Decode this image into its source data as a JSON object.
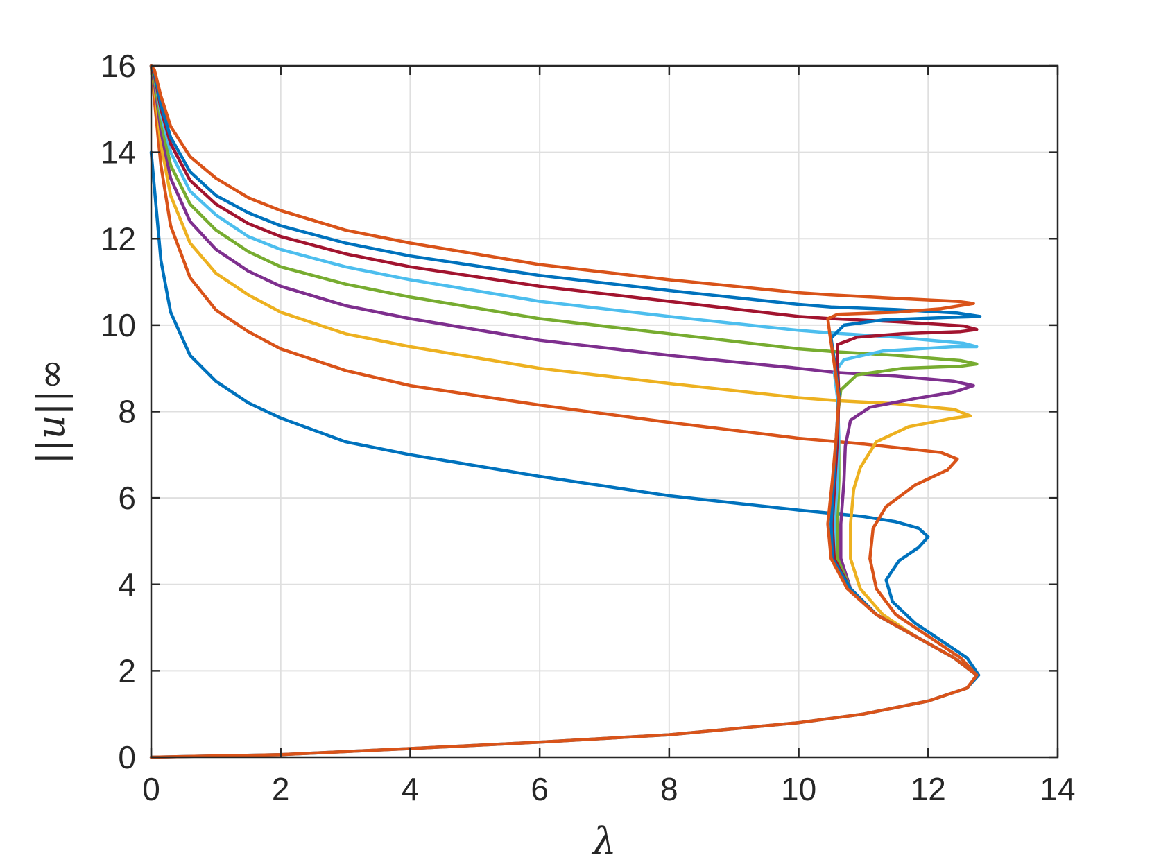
{
  "chart_data": {
    "type": "line",
    "title": "",
    "xlabel": "λ",
    "ylabel": "||u||∞",
    "xlim": [
      0,
      14
    ],
    "ylim": [
      0,
      16
    ],
    "xticks": [
      0,
      2,
      4,
      6,
      8,
      10,
      12,
      14
    ],
    "yticks": [
      0,
      2,
      4,
      6,
      8,
      10,
      12,
      14,
      16
    ],
    "xtick_labels": [
      "0",
      "2",
      "4",
      "6",
      "8",
      "10",
      "12",
      "14"
    ],
    "ytick_labels": [
      "0",
      "2",
      "4",
      "6",
      "8",
      "10",
      "12",
      "14",
      "16"
    ],
    "grid": true,
    "legend": "none",
    "colors": {
      "blue": "#0072BD",
      "orange": "#D95319",
      "yellow": "#EDB120",
      "purple": "#7E2F8E",
      "green": "#77AC30",
      "cyan": "#4DBEEE",
      "darkred": "#A2142F",
      "axis": "#262626",
      "grid": "#dfdfdf"
    },
    "series": [
      {
        "color": "#0072BD",
        "points": [
          [
            0,
            0
          ],
          [
            2,
            0.06
          ],
          [
            4,
            0.2
          ],
          [
            6,
            0.35
          ],
          [
            8,
            0.52
          ],
          [
            10,
            0.8
          ],
          [
            11,
            1.0
          ],
          [
            12,
            1.3
          ],
          [
            12.6,
            1.6
          ],
          [
            12.78,
            1.9
          ],
          [
            12.6,
            2.3
          ],
          [
            12.2,
            2.7
          ],
          [
            11.8,
            3.1
          ],
          [
            11.45,
            3.6
          ],
          [
            11.35,
            4.1
          ],
          [
            11.55,
            4.55
          ],
          [
            11.85,
            4.85
          ],
          [
            12.0,
            5.1
          ],
          [
            11.85,
            5.3
          ],
          [
            11.5,
            5.45
          ],
          [
            11.0,
            5.57
          ],
          [
            10,
            5.72
          ],
          [
            8,
            6.05
          ],
          [
            6,
            6.5
          ],
          [
            4,
            7.0
          ],
          [
            3,
            7.3
          ],
          [
            2,
            7.85
          ],
          [
            1.5,
            8.2
          ],
          [
            1,
            8.7
          ],
          [
            0.6,
            9.3
          ],
          [
            0.3,
            10.3
          ],
          [
            0.15,
            11.5
          ],
          [
            0.06,
            13
          ],
          [
            0,
            14
          ]
        ]
      },
      {
        "color": "#D95319",
        "points": [
          [
            0,
            0
          ],
          [
            2,
            0.06
          ],
          [
            4,
            0.2
          ],
          [
            6,
            0.35
          ],
          [
            8,
            0.52
          ],
          [
            10,
            0.8
          ],
          [
            11,
            1.0
          ],
          [
            12,
            1.3
          ],
          [
            12.6,
            1.6
          ],
          [
            12.75,
            1.9
          ],
          [
            12.5,
            2.3
          ],
          [
            12.0,
            2.8
          ],
          [
            11.5,
            3.3
          ],
          [
            11.2,
            3.9
          ],
          [
            11.1,
            4.6
          ],
          [
            11.15,
            5.3
          ],
          [
            11.35,
            5.8
          ],
          [
            11.8,
            6.3
          ],
          [
            12.3,
            6.65
          ],
          [
            12.45,
            6.9
          ],
          [
            12.2,
            7.05
          ],
          [
            11.0,
            7.25
          ],
          [
            10,
            7.38
          ],
          [
            8,
            7.75
          ],
          [
            6,
            8.15
          ],
          [
            4,
            8.6
          ],
          [
            3,
            8.95
          ],
          [
            2,
            9.45
          ],
          [
            1.5,
            9.85
          ],
          [
            1,
            10.35
          ],
          [
            0.6,
            11.1
          ],
          [
            0.3,
            12.3
          ],
          [
            0.15,
            13.7
          ],
          [
            0.05,
            15.2
          ],
          [
            0,
            16
          ]
        ]
      },
      {
        "color": "#EDB120",
        "points": [
          [
            12.75,
            1.9
          ],
          [
            12.4,
            2.3
          ],
          [
            11.8,
            2.8
          ],
          [
            11.3,
            3.3
          ],
          [
            10.95,
            3.9
          ],
          [
            10.8,
            4.6
          ],
          [
            10.8,
            5.4
          ],
          [
            10.85,
            6.2
          ],
          [
            10.95,
            6.7
          ],
          [
            11.2,
            7.3
          ],
          [
            11.7,
            7.65
          ],
          [
            12.4,
            7.85
          ],
          [
            12.65,
            7.9
          ],
          [
            12.4,
            8.05
          ],
          [
            11.5,
            8.18
          ],
          [
            10.6,
            8.25
          ],
          [
            10,
            8.32
          ],
          [
            8,
            8.65
          ],
          [
            6,
            9.0
          ],
          [
            4,
            9.5
          ],
          [
            3,
            9.8
          ],
          [
            2,
            10.3
          ],
          [
            1.5,
            10.7
          ],
          [
            1,
            11.2
          ],
          [
            0.6,
            11.9
          ],
          [
            0.3,
            13.0
          ],
          [
            0.15,
            14.2
          ],
          [
            0.05,
            15.5
          ],
          [
            0,
            16
          ]
        ]
      },
      {
        "color": "#7E2F8E",
        "points": [
          [
            12.75,
            1.9
          ],
          [
            12.4,
            2.3
          ],
          [
            11.8,
            2.8
          ],
          [
            11.2,
            3.3
          ],
          [
            10.8,
            3.9
          ],
          [
            10.65,
            4.6
          ],
          [
            10.65,
            5.4
          ],
          [
            10.7,
            6.4
          ],
          [
            10.72,
            7.2
          ],
          [
            10.8,
            7.8
          ],
          [
            11.1,
            8.1
          ],
          [
            11.8,
            8.3
          ],
          [
            12.4,
            8.45
          ],
          [
            12.7,
            8.6
          ],
          [
            12.4,
            8.7
          ],
          [
            11.5,
            8.82
          ],
          [
            10.6,
            8.9
          ],
          [
            10,
            9.0
          ],
          [
            8,
            9.3
          ],
          [
            6,
            9.65
          ],
          [
            4,
            10.15
          ],
          [
            3,
            10.45
          ],
          [
            2,
            10.9
          ],
          [
            1.5,
            11.25
          ],
          [
            1,
            11.75
          ],
          [
            0.6,
            12.4
          ],
          [
            0.3,
            13.4
          ],
          [
            0.15,
            14.5
          ],
          [
            0.05,
            15.6
          ],
          [
            0,
            16
          ]
        ]
      },
      {
        "color": "#77AC30",
        "points": [
          [
            12.75,
            1.9
          ],
          [
            12.4,
            2.3
          ],
          [
            11.8,
            2.8
          ],
          [
            11.2,
            3.3
          ],
          [
            10.8,
            3.9
          ],
          [
            10.6,
            4.6
          ],
          [
            10.6,
            5.4
          ],
          [
            10.62,
            6.4
          ],
          [
            10.62,
            7.3
          ],
          [
            10.6,
            7.9
          ],
          [
            10.65,
            8.5
          ],
          [
            10.9,
            8.85
          ],
          [
            11.6,
            9.0
          ],
          [
            12.5,
            9.05
          ],
          [
            12.75,
            9.1
          ],
          [
            12.5,
            9.18
          ],
          [
            11.5,
            9.3
          ],
          [
            10.6,
            9.38
          ],
          [
            10,
            9.45
          ],
          [
            8,
            9.8
          ],
          [
            6,
            10.15
          ],
          [
            4,
            10.65
          ],
          [
            3,
            10.95
          ],
          [
            2,
            11.35
          ],
          [
            1.5,
            11.7
          ],
          [
            1,
            12.2
          ],
          [
            0.6,
            12.8
          ],
          [
            0.3,
            13.7
          ],
          [
            0.15,
            14.7
          ],
          [
            0.05,
            15.7
          ],
          [
            0,
            16
          ]
        ]
      },
      {
        "color": "#4DBEEE",
        "points": [
          [
            12.75,
            1.9
          ],
          [
            12.4,
            2.3
          ],
          [
            11.8,
            2.8
          ],
          [
            11.2,
            3.3
          ],
          [
            10.8,
            3.9
          ],
          [
            10.55,
            4.6
          ],
          [
            10.55,
            5.4
          ],
          [
            10.6,
            6.4
          ],
          [
            10.62,
            7.4
          ],
          [
            10.6,
            8.3
          ],
          [
            10.55,
            8.9
          ],
          [
            10.7,
            9.2
          ],
          [
            11.3,
            9.4
          ],
          [
            12.4,
            9.5
          ],
          [
            12.75,
            9.5
          ],
          [
            12.55,
            9.58
          ],
          [
            11.5,
            9.72
          ],
          [
            10.5,
            9.82
          ],
          [
            10,
            9.88
          ],
          [
            8,
            10.2
          ],
          [
            6,
            10.55
          ],
          [
            4,
            11.05
          ],
          [
            3,
            11.35
          ],
          [
            2,
            11.75
          ],
          [
            1.5,
            12.05
          ],
          [
            1,
            12.55
          ],
          [
            0.6,
            13.1
          ],
          [
            0.3,
            14.0
          ],
          [
            0.15,
            14.9
          ],
          [
            0.05,
            15.8
          ],
          [
            0,
            16
          ]
        ]
      },
      {
        "color": "#A2142F",
        "points": [
          [
            12.75,
            1.9
          ],
          [
            12.4,
            2.3
          ],
          [
            11.8,
            2.8
          ],
          [
            11.2,
            3.3
          ],
          [
            10.8,
            3.9
          ],
          [
            10.55,
            4.6
          ],
          [
            10.52,
            5.4
          ],
          [
            10.56,
            6.4
          ],
          [
            10.6,
            7.4
          ],
          [
            10.62,
            8.4
          ],
          [
            10.6,
            9.1
          ],
          [
            10.6,
            9.55
          ],
          [
            10.9,
            9.72
          ],
          [
            11.6,
            9.8
          ],
          [
            12.5,
            9.85
          ],
          [
            12.75,
            9.9
          ],
          [
            12.55,
            9.98
          ],
          [
            11.5,
            10.08
          ],
          [
            10.5,
            10.15
          ],
          [
            10,
            10.2
          ],
          [
            8,
            10.55
          ],
          [
            6,
            10.9
          ],
          [
            4,
            11.35
          ],
          [
            3,
            11.65
          ],
          [
            2,
            12.05
          ],
          [
            1.5,
            12.35
          ],
          [
            1,
            12.8
          ],
          [
            0.6,
            13.35
          ],
          [
            0.3,
            14.2
          ],
          [
            0.15,
            15.0
          ],
          [
            0.05,
            15.8
          ],
          [
            0,
            16
          ]
        ]
      },
      {
        "color": "#0072BD",
        "points": [
          [
            12.75,
            1.9
          ],
          [
            12.4,
            2.3
          ],
          [
            11.8,
            2.8
          ],
          [
            11.2,
            3.3
          ],
          [
            10.8,
            3.9
          ],
          [
            10.52,
            4.6
          ],
          [
            10.5,
            5.4
          ],
          [
            10.54,
            6.4
          ],
          [
            10.58,
            7.4
          ],
          [
            10.62,
            8.4
          ],
          [
            10.55,
            9.2
          ],
          [
            10.5,
            9.7
          ],
          [
            10.7,
            10.0
          ],
          [
            11.3,
            10.12
          ],
          [
            12.3,
            10.18
          ],
          [
            12.8,
            10.2
          ],
          [
            12.45,
            10.28
          ],
          [
            11.5,
            10.36
          ],
          [
            10.5,
            10.42
          ],
          [
            10,
            10.48
          ],
          [
            8,
            10.8
          ],
          [
            6,
            11.15
          ],
          [
            4,
            11.6
          ],
          [
            3,
            11.9
          ],
          [
            2,
            12.3
          ],
          [
            1.5,
            12.6
          ],
          [
            1,
            13.0
          ],
          [
            0.6,
            13.55
          ],
          [
            0.3,
            14.35
          ],
          [
            0.15,
            15.1
          ],
          [
            0.05,
            15.85
          ],
          [
            0,
            16
          ]
        ]
      },
      {
        "color": "#D95319",
        "points": [
          [
            12.75,
            1.9
          ],
          [
            12.4,
            2.3
          ],
          [
            11.8,
            2.8
          ],
          [
            11.2,
            3.3
          ],
          [
            10.75,
            3.9
          ],
          [
            10.5,
            4.6
          ],
          [
            10.45,
            5.4
          ],
          [
            10.52,
            6.4
          ],
          [
            10.58,
            7.4
          ],
          [
            10.62,
            8.3
          ],
          [
            10.55,
            9.1
          ],
          [
            10.48,
            9.8
          ],
          [
            10.45,
            10.15
          ],
          [
            10.6,
            10.25
          ],
          [
            11.5,
            10.3
          ],
          [
            12.2,
            10.38
          ],
          [
            12.7,
            10.5
          ],
          [
            12.45,
            10.55
          ],
          [
            11.5,
            10.62
          ],
          [
            10.5,
            10.7
          ],
          [
            10,
            10.75
          ],
          [
            8,
            11.05
          ],
          [
            6,
            11.4
          ],
          [
            4,
            11.9
          ],
          [
            3,
            12.2
          ],
          [
            2,
            12.65
          ],
          [
            1.5,
            12.95
          ],
          [
            1,
            13.4
          ],
          [
            0.6,
            13.9
          ],
          [
            0.3,
            14.6
          ],
          [
            0.15,
            15.3
          ],
          [
            0.05,
            15.9
          ],
          [
            0,
            16
          ]
        ]
      }
    ]
  }
}
